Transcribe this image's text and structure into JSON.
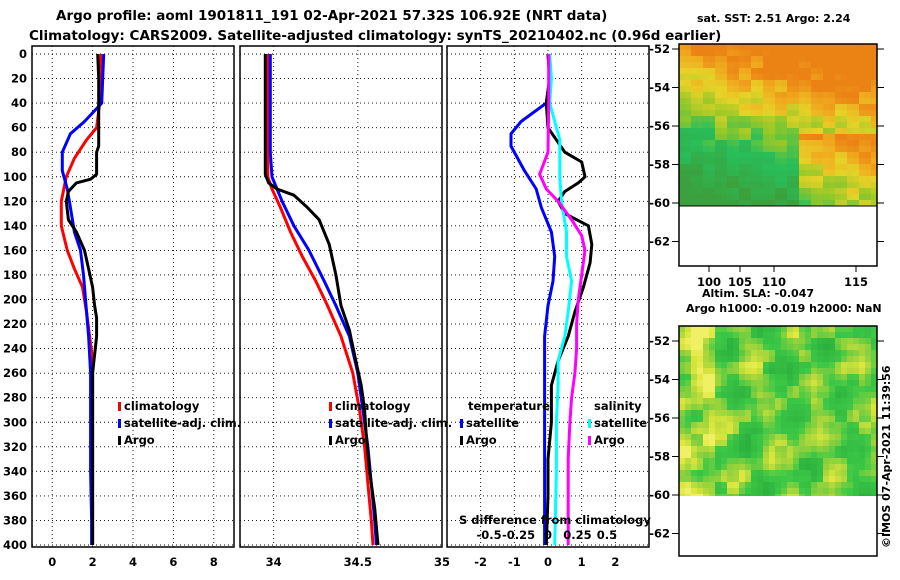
{
  "title": {
    "line1": "Argo profile: aoml 1901811_191 02-Apr-2021 57.32S 106.92E (NRT data)",
    "line2": "Climatology: CARS2009. Satellite-adjusted climatology: synTS_20210402.nc (0.96d earlier)"
  },
  "colors": {
    "climatology": "#ff0000",
    "satellite": "#0000ff",
    "argo": "#000000",
    "sat_salinity": "#00ffff",
    "argo_salinity": "#ff00ff"
  },
  "chart_data": [
    {
      "type": "line",
      "name": "temperature_profile",
      "xlim": [
        -1,
        9
      ],
      "ylim": [
        0,
        400
      ],
      "xticks": [
        0,
        2,
        4,
        6,
        8
      ],
      "yticks": [
        0,
        20,
        40,
        60,
        80,
        100,
        120,
        140,
        160,
        180,
        200,
        220,
        240,
        260,
        280,
        300,
        320,
        340,
        360,
        380,
        400
      ],
      "legend": [
        "climatology",
        "satellite-adj. clim.",
        "Argo"
      ],
      "series": [
        {
          "name": "climatology",
          "points": [
            [
              2.4,
              0
            ],
            [
              2.4,
              20
            ],
            [
              2.35,
              40
            ],
            [
              2.2,
              60
            ],
            [
              1.7,
              70
            ],
            [
              1.1,
              85
            ],
            [
              0.7,
              100
            ],
            [
              0.45,
              120
            ],
            [
              0.45,
              140
            ],
            [
              0.75,
              160
            ],
            [
              1.1,
              175
            ],
            [
              1.5,
              190
            ],
            [
              1.7,
              210
            ],
            [
              1.85,
              230
            ],
            [
              2.0,
              250
            ],
            [
              2.0,
              280
            ],
            [
              2.0,
              320
            ],
            [
              2.0,
              360
            ],
            [
              2.0,
              400
            ]
          ]
        },
        {
          "name": "satellite-adj. clim.",
          "points": [
            [
              2.55,
              0
            ],
            [
              2.5,
              20
            ],
            [
              2.45,
              40
            ],
            [
              1.6,
              55
            ],
            [
              0.9,
              65
            ],
            [
              0.5,
              80
            ],
            [
              0.5,
              95
            ],
            [
              0.75,
              110
            ],
            [
              0.9,
              125
            ],
            [
              1.1,
              145
            ],
            [
              1.4,
              160
            ],
            [
              1.55,
              180
            ],
            [
              1.65,
              200
            ],
            [
              1.8,
              230
            ],
            [
              1.9,
              260
            ],
            [
              1.9,
              300
            ],
            [
              1.9,
              340
            ],
            [
              1.95,
              380
            ],
            [
              1.95,
              400
            ]
          ]
        },
        {
          "name": "Argo",
          "points": [
            [
              2.25,
              0
            ],
            [
              2.3,
              20
            ],
            [
              2.3,
              40
            ],
            [
              2.3,
              60
            ],
            [
              2.3,
              75
            ],
            [
              2.2,
              80
            ],
            [
              2.2,
              98
            ],
            [
              1.9,
              102
            ],
            [
              1.2,
              105
            ],
            [
              0.8,
              112
            ],
            [
              0.7,
              120
            ],
            [
              0.8,
              135
            ],
            [
              1.2,
              145
            ],
            [
              1.6,
              160
            ],
            [
              1.8,
              175
            ],
            [
              2.0,
              190
            ],
            [
              2.1,
              205
            ],
            [
              2.2,
              215
            ],
            [
              2.2,
              230
            ],
            [
              2.1,
              245
            ],
            [
              2.0,
              260
            ],
            [
              2.0,
              300
            ],
            [
              2.0,
              340
            ],
            [
              2.0,
              380
            ],
            [
              2.0,
              400
            ]
          ]
        }
      ]
    },
    {
      "type": "line",
      "name": "salinity_profile",
      "xlim": [
        33.8,
        35.0
      ],
      "ylim": [
        0,
        400
      ],
      "xticks": [
        34,
        34.5,
        35
      ],
      "legend": [
        "climatology",
        "satellite-adj. clim.",
        "Argo"
      ],
      "series": [
        {
          "name": "climatology",
          "points": [
            [
              33.965,
              0
            ],
            [
              33.965,
              40
            ],
            [
              33.965,
              80
            ],
            [
              33.965,
              100
            ],
            [
              33.99,
              110
            ],
            [
              34.04,
              125
            ],
            [
              34.1,
              145
            ],
            [
              34.17,
              165
            ],
            [
              34.25,
              185
            ],
            [
              34.32,
              205
            ],
            [
              34.4,
              230
            ],
            [
              34.47,
              260
            ],
            [
              34.51,
              290
            ],
            [
              34.54,
              320
            ],
            [
              34.56,
              350
            ],
            [
              34.58,
              380
            ],
            [
              34.59,
              400
            ]
          ]
        },
        {
          "name": "satellite-adj. clim.",
          "points": [
            [
              33.98,
              0
            ],
            [
              33.98,
              40
            ],
            [
              33.98,
              80
            ],
            [
              33.99,
              100
            ],
            [
              34.05,
              120
            ],
            [
              34.12,
              140
            ],
            [
              34.21,
              160
            ],
            [
              34.3,
              185
            ],
            [
              34.37,
              205
            ],
            [
              34.45,
              230
            ],
            [
              34.5,
              260
            ],
            [
              34.53,
              290
            ],
            [
              34.56,
              320
            ],
            [
              34.58,
              350
            ],
            [
              34.6,
              380
            ],
            [
              34.61,
              400
            ]
          ]
        },
        {
          "name": "Argo",
          "points": [
            [
              33.95,
              0
            ],
            [
              33.95,
              40
            ],
            [
              33.95,
              80
            ],
            [
              33.95,
              98
            ],
            [
              33.97,
              105
            ],
            [
              34.02,
              110
            ],
            [
              34.12,
              115
            ],
            [
              34.2,
              125
            ],
            [
              34.27,
              135
            ],
            [
              34.33,
              155
            ],
            [
              34.37,
              180
            ],
            [
              34.4,
              205
            ],
            [
              34.45,
              225
            ],
            [
              34.48,
              245
            ],
            [
              34.52,
              270
            ],
            [
              34.54,
              290
            ],
            [
              34.55,
              310
            ],
            [
              34.57,
              340
            ],
            [
              34.6,
              370
            ],
            [
              34.62,
              400
            ]
          ]
        }
      ]
    },
    {
      "type": "line",
      "name": "difference_from_climatology",
      "xlim": [
        -3,
        3
      ],
      "ylim": [
        0,
        400
      ],
      "xticks_T": [
        -2,
        -1,
        0,
        1,
        2
      ],
      "xticks_S": [
        "-0.5",
        "-0.25",
        "0",
        "0.25",
        "0.5"
      ],
      "xlabel": "S difference from climatology",
      "legend": {
        "temperature": [
          "satellite",
          "Argo"
        ],
        "salinity": [
          "satellite",
          "Argo"
        ]
      },
      "series": [
        {
          "name": "temperature satellite",
          "points": [
            [
              0,
              0
            ],
            [
              0.05,
              20
            ],
            [
              -0.05,
              40
            ],
            [
              -0.8,
              55
            ],
            [
              -1.1,
              65
            ],
            [
              -1.1,
              75
            ],
            [
              -0.7,
              95
            ],
            [
              -0.35,
              110
            ],
            [
              -0.2,
              125
            ],
            [
              0.1,
              145
            ],
            [
              0.2,
              165
            ],
            [
              0.15,
              185
            ],
            [
              0.0,
              205
            ],
            [
              -0.1,
              230
            ],
            [
              -0.1,
              260
            ],
            [
              -0.1,
              300
            ],
            [
              -0.1,
              350
            ],
            [
              -0.1,
              400
            ]
          ]
        },
        {
          "name": "temperature Argo",
          "points": [
            [
              0,
              0
            ],
            [
              0.05,
              20
            ],
            [
              -0.05,
              40
            ],
            [
              0,
              60
            ],
            [
              0.5,
              80
            ],
            [
              1.0,
              88
            ],
            [
              1.1,
              100
            ],
            [
              0.9,
              105
            ],
            [
              0.5,
              112
            ],
            [
              0.3,
              120
            ],
            [
              0.5,
              130
            ],
            [
              1.2,
              140
            ],
            [
              1.3,
              155
            ],
            [
              1.25,
              170
            ],
            [
              1.05,
              190
            ],
            [
              0.8,
              210
            ],
            [
              0.6,
              230
            ],
            [
              0.3,
              250
            ],
            [
              0.1,
              270
            ],
            [
              0.1,
              300
            ],
            [
              0,
              330
            ],
            [
              0,
              360
            ],
            [
              -0.05,
              400
            ]
          ]
        },
        {
          "name": "salinity satellite",
          "points": [
            [
              0.05,
              0
            ],
            [
              0.1,
              20
            ],
            [
              0.05,
              40
            ],
            [
              0.35,
              70
            ],
            [
              0.35,
              100
            ],
            [
              0.4,
              120
            ],
            [
              0.55,
              145
            ],
            [
              0.55,
              165
            ],
            [
              0.7,
              185
            ],
            [
              0.6,
              210
            ],
            [
              0.5,
              230
            ],
            [
              0.3,
              250
            ],
            [
              0.3,
              270
            ],
            [
              0.25,
              300
            ],
            [
              0.25,
              340
            ],
            [
              0.2,
              400
            ]
          ]
        },
        {
          "name": "salinity Argo",
          "points": [
            [
              0.02,
              0
            ],
            [
              0.02,
              40
            ],
            [
              0,
              80
            ],
            [
              -0.25,
              98
            ],
            [
              -0.05,
              110
            ],
            [
              0.3,
              120
            ],
            [
              0.7,
              135
            ],
            [
              1.0,
              148
            ],
            [
              1.1,
              160
            ],
            [
              1.0,
              180
            ],
            [
              0.9,
              200
            ],
            [
              0.85,
              220
            ],
            [
              0.85,
              240
            ],
            [
              0.8,
              260
            ],
            [
              0.7,
              280
            ],
            [
              0.65,
              300
            ],
            [
              0.6,
              330
            ],
            [
              0.6,
              360
            ],
            [
              0.6,
              400
            ]
          ]
        }
      ]
    }
  ],
  "maps": {
    "sst": {
      "title": "sat. SST: 2.51 Argo: 2.24",
      "lat_ticks": [
        "-52",
        "-54",
        "-56",
        "-58",
        "-60",
        "-62"
      ],
      "lon_ticks": [
        "100",
        "105",
        "110",
        "115"
      ]
    },
    "sla": {
      "title_line1": "Altim. SLA: -0.047",
      "title_line2": "Argo h1000: -0.019 h2000: NaN",
      "lat_ticks": [
        "-52",
        "-54",
        "-56",
        "-58",
        "-60",
        "-62"
      ]
    }
  },
  "credit": "©IMOS 07-Apr-2021 11:39:56",
  "labels": {
    "p3_temperature": "temperature",
    "p3_salinity": "salinity",
    "p3_sat": "satellite",
    "p3_argo": "Argo"
  }
}
